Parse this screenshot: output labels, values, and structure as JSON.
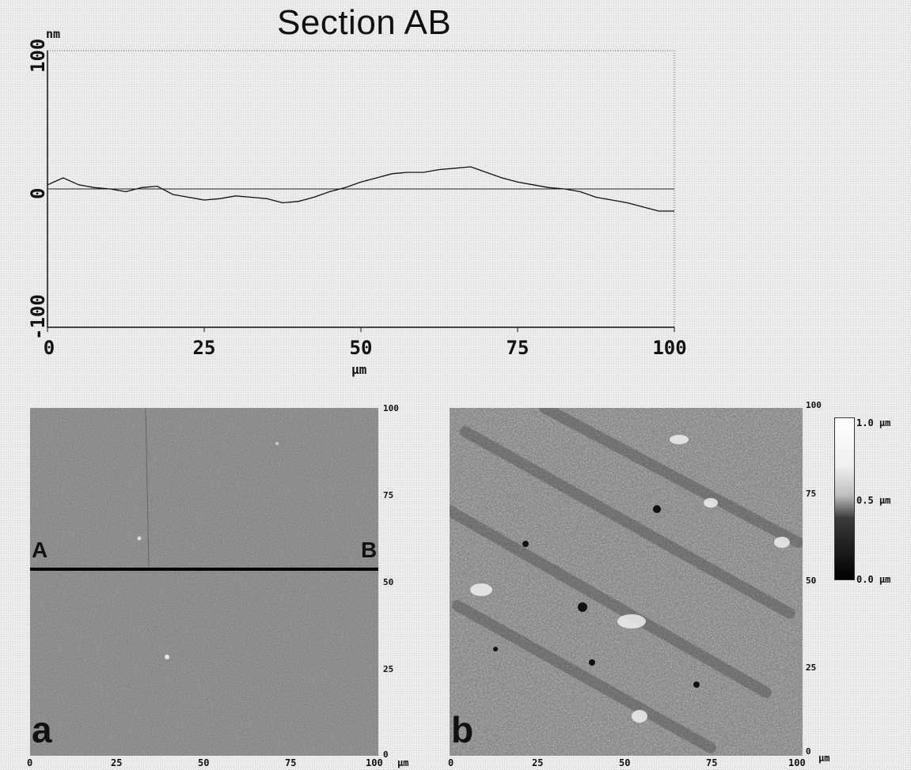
{
  "chart_data": [
    {
      "type": "line",
      "title": "Section AB",
      "ylabel": "nm",
      "xlabel": "µm",
      "xlim": [
        0,
        100
      ],
      "ylim": [
        -100,
        100
      ],
      "x_ticks": [
        "0",
        "25",
        "50",
        "75",
        "100"
      ],
      "y_ticks": [
        "100",
        "0",
        "-100"
      ],
      "grid": false,
      "reference_line_y": 0,
      "x": [
        0,
        2.5,
        5,
        7.5,
        10,
        12.5,
        15,
        17.5,
        20,
        22.5,
        25,
        27.5,
        30,
        32.5,
        35,
        37.5,
        40,
        42.5,
        45,
        47.5,
        50,
        52.5,
        55,
        57.5,
        60,
        62.5,
        65,
        67.5,
        70,
        72.5,
        75,
        77.5,
        80,
        82.5,
        85,
        87.5,
        90,
        92.5,
        95,
        97.5,
        100
      ],
      "y": [
        3,
        8,
        3,
        1,
        0,
        -2,
        1,
        2,
        -4,
        -6,
        -8,
        -7,
        -5,
        -6,
        -7,
        -10,
        -9,
        -6,
        -2,
        1,
        5,
        8,
        11,
        12,
        12,
        14,
        15,
        16,
        12,
        8,
        5,
        3,
        1,
        0,
        -2,
        -6,
        -8,
        -10,
        -13,
        -16,
        -16
      ]
    },
    {
      "type": "heatmap",
      "panel_label": "a",
      "x_ticks": [
        "0",
        "25",
        "50",
        "75",
        "100"
      ],
      "y_ticks": [
        "100",
        "75",
        "50",
        "25",
        "0"
      ],
      "x_unit": "µm",
      "section_markers": [
        "A",
        "B"
      ],
      "section_y": 53
    },
    {
      "type": "heatmap",
      "panel_label": "b",
      "x_ticks": [
        "0",
        "25",
        "50",
        "75",
        "100"
      ],
      "y_ticks": [
        "100",
        "75",
        "50",
        "25",
        "0"
      ],
      "x_unit": "µm",
      "colorbar_labels": [
        "1.0 µm",
        "0.5 µm",
        "0.0 µm"
      ]
    }
  ]
}
